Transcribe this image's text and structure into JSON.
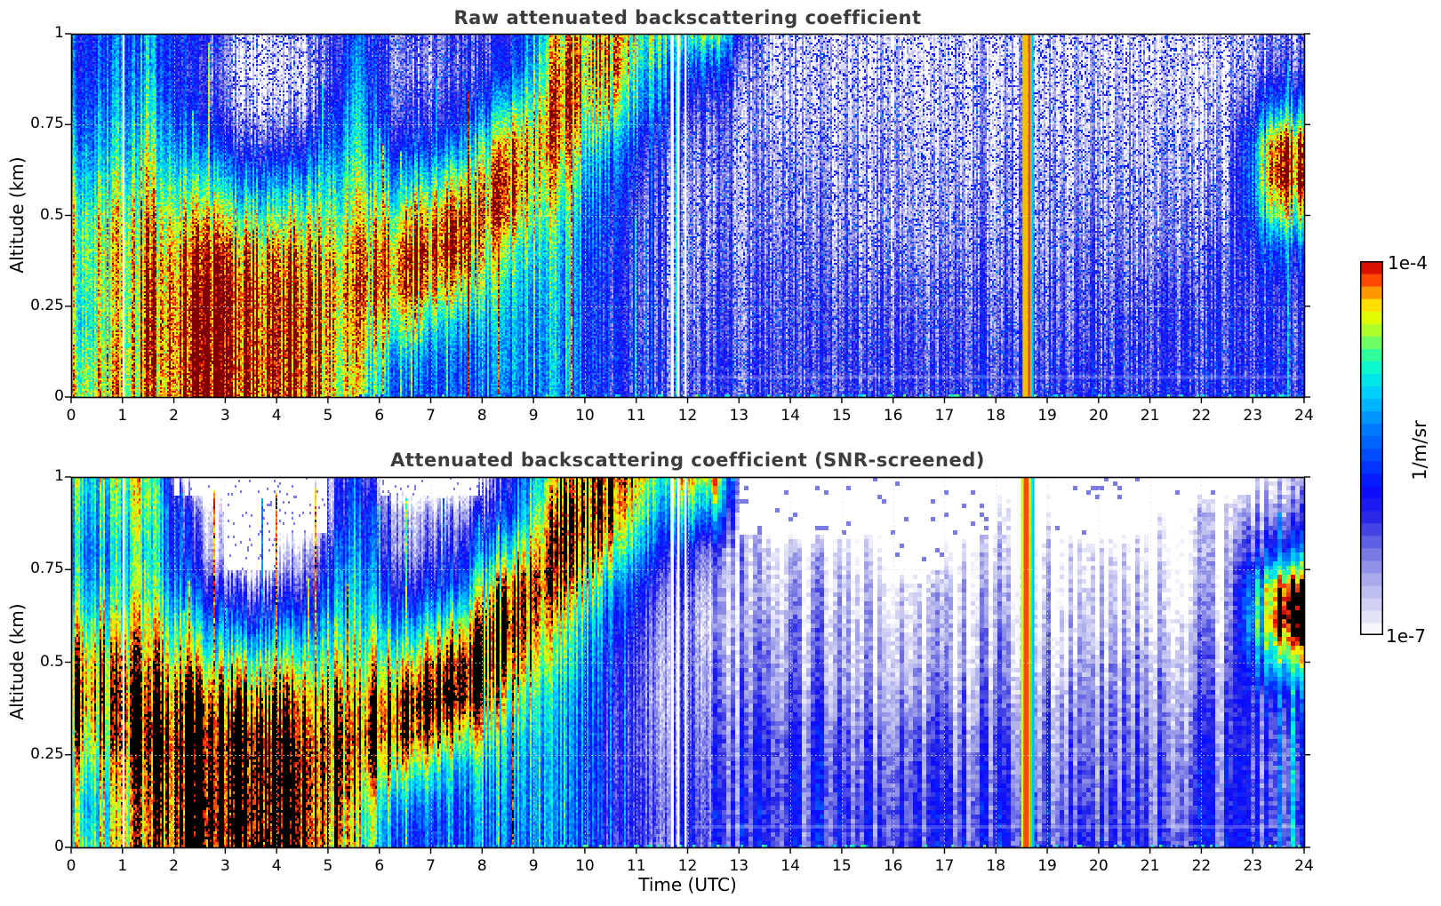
{
  "figure": {
    "background": "#ffffff",
    "xlabel": "Time (UTC)",
    "ylabel": "Altitude (km)",
    "panels": [
      {
        "title": "Raw attenuated backscattering coefficient"
      },
      {
        "title": "Attenuated backscattering coefficient (SNR-screened)"
      }
    ],
    "colorbar": {
      "max_label": "1e-4",
      "min_label": "1e-7",
      "unit_label": "1/m/sr"
    }
  },
  "chart_data": {
    "type": "heatmap",
    "x_axis": {
      "label": "Time (UTC)",
      "range": [
        0,
        24
      ],
      "tick_values": [
        0,
        1,
        2,
        3,
        4,
        5,
        6,
        7,
        8,
        9,
        10,
        11,
        12,
        13,
        14,
        15,
        16,
        17,
        18,
        19,
        20,
        21,
        22,
        23,
        24
      ],
      "tick_labels": [
        "0",
        "1",
        "2",
        "3",
        "4",
        "5",
        "6",
        "7",
        "8",
        "9",
        "10",
        "11",
        "12",
        "13",
        "14",
        "15",
        "16",
        "17",
        "18",
        "19",
        "20",
        "21",
        "22",
        "23",
        "24"
      ]
    },
    "y_axis": {
      "label": "Altitude (km)",
      "range": [
        0,
        1
      ],
      "tick_values": [
        1,
        0.75,
        0.5,
        0.25,
        0
      ],
      "tick_labels": [
        "1",
        "0.75",
        "0.5",
        "0.25",
        "0"
      ]
    },
    "colorbar": {
      "scale": "log10",
      "min": 1e-07,
      "max": 0.0001,
      "min_label": "1e-7",
      "max_label": "1e-4",
      "units": "1/m/sr",
      "n_segments": 30
    },
    "colormap_stops": [
      [
        -7.0,
        "#ffffff"
      ],
      [
        -6.78,
        "#d6d6f5"
      ],
      [
        -6.55,
        "#aaaaeb"
      ],
      [
        -6.3,
        "#6e6ee4"
      ],
      [
        -6.05,
        "#2828e6"
      ],
      [
        -5.82,
        "#0a0aff"
      ],
      [
        -5.58,
        "#0046ff"
      ],
      [
        -5.32,
        "#0082ff"
      ],
      [
        -5.08,
        "#00c8ff"
      ],
      [
        -4.88,
        "#00f5dc"
      ],
      [
        -4.72,
        "#3cff8c"
      ],
      [
        -4.58,
        "#a0ff3c"
      ],
      [
        -4.46,
        "#dcff00"
      ],
      [
        -4.36,
        "#ffe600"
      ],
      [
        -4.26,
        "#ffa000"
      ],
      [
        -4.16,
        "#ff5000"
      ],
      [
        -4.06,
        "#e61400"
      ],
      [
        -4.0,
        "#960000"
      ]
    ],
    "grid": {
      "col_time_centers_utc": [
        0.5,
        1.5,
        2.5,
        3.5,
        4.5,
        5.5,
        6.5,
        7.5,
        8.5,
        9.5,
        10.5,
        11.5,
        12.5,
        13.5,
        14.5,
        15.5,
        16.5,
        17.5,
        18.5,
        19.5,
        20.5,
        21.5,
        22.5,
        23.5
      ],
      "row_altitudes_km": [
        1.0,
        0.9,
        0.8,
        0.7,
        0.6,
        0.5,
        0.4,
        0.3,
        0.2,
        0.1,
        0.0
      ],
      "values": "log10 of attenuated backscatter (1/m/sr); null = screened out / no signal"
    },
    "data_gaps_utc": [
      {
        "t": 1.02,
        "w": 0.04
      },
      {
        "t": 11.7,
        "w": 0.06
      },
      {
        "t": 11.82,
        "w": 0.05
      },
      {
        "t": 11.96,
        "w": 0.04
      }
    ],
    "panels": [
      {
        "title": "Raw attenuated backscattering coefficient",
        "over_scale_color": "#7f0000",
        "stripe_bands_utc": [
          [
            18.52,
            18.63,
            -4.3
          ],
          [
            18.63,
            18.67,
            -4.15
          ],
          [
            18.67,
            18.7,
            -4.85
          ],
          [
            18.7,
            18.73,
            -5.1
          ]
        ],
        "z_log10": [
          [
            -5.6,
            -5.6,
            -5.4,
            -5.2,
            -4.9,
            -4.6,
            -4.5,
            -4.6,
            -4.7,
            -4.5,
            -4.4
          ],
          [
            -5.3,
            -5.2,
            -5.0,
            -4.8,
            -4.6,
            -4.4,
            -4.3,
            -4.2,
            -4.2,
            -4.2,
            -4.3
          ],
          [
            -6.0,
            -6.2,
            -6.0,
            -5.6,
            -5.0,
            -4.5,
            -4.15,
            -4.05,
            -4.0,
            -4.0,
            -4.0
          ],
          [
            -6.8,
            -7.0,
            -6.8,
            -6.2,
            -5.4,
            -4.7,
            -4.2,
            -4.0,
            -4.0,
            -4.0,
            -4.0
          ],
          [
            -6.6,
            -6.9,
            -6.6,
            -6.0,
            -5.2,
            -4.6,
            -4.2,
            -4.05,
            -4.0,
            -4.0,
            -4.0
          ],
          [
            -5.6,
            -5.4,
            -5.2,
            -5.0,
            -4.8,
            -4.6,
            -4.4,
            -4.3,
            -4.4,
            -4.5,
            -4.5
          ],
          [
            -6.4,
            -6.5,
            -6.3,
            -5.9,
            -5.2,
            -4.5,
            -4.1,
            -4.1,
            -4.6,
            -5.3,
            -5.6
          ],
          [
            -6.3,
            -6.4,
            -6.1,
            -5.5,
            -4.7,
            -4.15,
            -4.1,
            -4.5,
            -5.2,
            -5.6,
            -5.7
          ],
          [
            -6.0,
            -5.8,
            -5.0,
            -4.3,
            -4.1,
            -4.2,
            -4.7,
            -5.0,
            -5.2,
            -5.3,
            -5.4
          ],
          [
            -4.4,
            -4.2,
            -4.1,
            -4.2,
            -4.5,
            -4.8,
            -5.0,
            -5.1,
            -5.2,
            -5.2,
            -5.3
          ],
          [
            -4.3,
            -4.3,
            -4.6,
            -5.2,
            -5.6,
            -5.8,
            -5.9,
            -6.0,
            -6.0,
            -5.9,
            -6.0
          ],
          [
            -4.8,
            -5.2,
            -5.6,
            -6.0,
            -6.2,
            -6.3,
            -6.3,
            -6.3,
            -6.2,
            -6.1,
            -6.1
          ],
          [
            -4.6,
            -5.6,
            -6.2,
            -6.4,
            -6.5,
            -6.4,
            -6.4,
            -6.3,
            -6.2,
            -6.1,
            -6.1
          ],
          [
            -6.7,
            -6.7,
            -6.6,
            -6.5,
            -6.4,
            -6.4,
            -6.3,
            -6.2,
            -6.2,
            -6.1,
            -6.1
          ],
          [
            -6.8,
            -6.7,
            -6.7,
            -6.6,
            -6.5,
            -6.4,
            -6.3,
            -6.2,
            -6.1,
            -6.1,
            -6.1
          ],
          [
            -6.8,
            -6.8,
            -6.7,
            -6.6,
            -6.6,
            -6.6,
            -6.5,
            -6.3,
            -6.2,
            -6.1,
            -6.1
          ],
          [
            -6.9,
            -6.8,
            -6.8,
            -6.7,
            -6.6,
            -6.6,
            -6.5,
            -6.3,
            -6.2,
            -6.1,
            -6.1
          ],
          [
            -6.8,
            -6.8,
            -6.7,
            -6.7,
            -6.6,
            -6.5,
            -6.4,
            -6.3,
            -6.2,
            -6.1,
            -6.1
          ],
          [
            -6.8,
            -6.7,
            -6.7,
            -6.6,
            -6.5,
            -6.5,
            -6.4,
            -6.3,
            -6.2,
            -6.1,
            -6.0
          ],
          [
            -6.9,
            -6.8,
            -6.8,
            -6.7,
            -6.6,
            -6.5,
            -6.4,
            -6.3,
            -6.2,
            -6.1,
            -6.0
          ],
          [
            -6.9,
            -6.8,
            -6.7,
            -6.7,
            -6.6,
            -6.5,
            -6.4,
            -6.3,
            -6.2,
            -6.1,
            -6.0
          ],
          [
            -6.9,
            -6.9,
            -6.8,
            -6.7,
            -6.6,
            -6.5,
            -6.4,
            -6.2,
            -6.1,
            -6.1,
            -6.0
          ],
          [
            -6.9,
            -6.9,
            -6.8,
            -6.7,
            -6.6,
            -6.5,
            -6.3,
            -6.2,
            -6.1,
            -6.1,
            -6.0
          ],
          [
            -6.5,
            -6.2,
            -5.3,
            -4.1,
            -4.0,
            -4.6,
            -5.6,
            -6.0,
            -6.1,
            -6.0,
            -6.0
          ]
        ]
      },
      {
        "title": "Attenuated backscattering coefficient (SNR-screened)",
        "over_scale_color": "#000000",
        "stripe_bands_utc": [
          [
            18.49,
            18.54,
            -4.5
          ],
          [
            18.54,
            18.64,
            -4.15
          ],
          [
            18.64,
            18.68,
            -4.4
          ],
          [
            18.68,
            18.71,
            -4.85
          ],
          [
            18.71,
            18.75,
            -5.1
          ]
        ],
        "z_log10": [
          [
            -4.8,
            -5.0,
            -5.2,
            -5.0,
            -4.6,
            -4.2,
            -4.1,
            -4.3,
            -4.6,
            -4.9,
            -4.6
          ],
          [
            -4.5,
            -4.6,
            -4.8,
            -4.7,
            -4.4,
            -4.2,
            -4.0,
            -3.9,
            -4.0,
            -4.1,
            -4.2
          ],
          [
            null,
            -6.5,
            -6.3,
            -5.8,
            -5.1,
            -4.5,
            -4.0,
            -3.8,
            -3.8,
            -3.8,
            -3.8
          ],
          [
            null,
            null,
            null,
            -6.4,
            -5.6,
            -4.7,
            -4.1,
            -3.8,
            -3.8,
            -3.8,
            -3.8
          ],
          [
            null,
            null,
            -6.6,
            -6.1,
            -5.3,
            -4.6,
            -4.1,
            -3.9,
            -3.8,
            -3.8,
            -3.8
          ],
          [
            -5.6,
            -5.4,
            -5.2,
            -5.0,
            -4.8,
            -4.6,
            -4.3,
            -4.1,
            -4.2,
            -4.4,
            -4.4
          ],
          [
            null,
            -6.6,
            -6.4,
            -5.9,
            -5.2,
            -4.4,
            -3.9,
            -3.9,
            -4.5,
            -5.3,
            -5.6
          ],
          [
            null,
            -6.5,
            -6.1,
            -5.5,
            -4.6,
            -3.9,
            -3.8,
            -4.4,
            -5.2,
            -5.6,
            -5.7
          ],
          [
            -6.0,
            -5.7,
            -4.9,
            -4.1,
            -3.9,
            -4.1,
            -4.6,
            -5.0,
            -5.2,
            -5.3,
            -5.4
          ],
          [
            -4.2,
            -3.9,
            -3.8,
            -4.0,
            -4.4,
            -4.7,
            -5.0,
            -5.1,
            -5.2,
            -5.2,
            -5.3
          ],
          [
            -4.0,
            -4.1,
            -4.5,
            -5.2,
            -5.6,
            -5.8,
            -5.9,
            -6.0,
            -6.0,
            -5.9,
            -6.0
          ],
          [
            -4.6,
            -5.1,
            -5.6,
            -6.1,
            -6.3,
            -6.4,
            -6.4,
            -6.3,
            -6.2,
            -6.1,
            -6.1
          ],
          [
            -4.3,
            -5.2,
            -6.3,
            -6.6,
            -6.7,
            -6.5,
            -6.4,
            -6.3,
            -6.2,
            -6.1,
            -6.1
          ],
          [
            null,
            null,
            -6.9,
            -6.8,
            -6.6,
            -6.5,
            -6.4,
            -6.2,
            -6.2,
            -6.1,
            -6.1
          ],
          [
            null,
            null,
            -6.9,
            -6.7,
            -6.6,
            -6.5,
            -6.4,
            -6.2,
            -6.1,
            -6.1,
            -6.1
          ],
          [
            null,
            null,
            -6.9,
            -6.8,
            -6.7,
            -6.6,
            -6.5,
            -6.3,
            -6.2,
            -6.1,
            -6.1
          ],
          [
            null,
            null,
            null,
            -6.9,
            -6.8,
            -6.7,
            -6.5,
            -6.3,
            -6.2,
            -6.1,
            -6.1
          ],
          [
            null,
            null,
            -6.9,
            -6.8,
            -6.7,
            -6.6,
            -6.5,
            -6.3,
            -6.2,
            -6.1,
            -6.1
          ],
          [
            null,
            -6.9,
            -6.9,
            -6.8,
            -6.7,
            -6.6,
            -6.4,
            -6.3,
            -6.2,
            -6.1,
            -6.0
          ],
          [
            null,
            null,
            -6.9,
            -6.8,
            -6.7,
            -6.6,
            -6.4,
            -6.3,
            -6.2,
            -6.1,
            -6.0
          ],
          [
            null,
            null,
            -6.9,
            -6.8,
            -6.7,
            -6.5,
            -6.4,
            -6.3,
            -6.2,
            -6.1,
            -6.0
          ],
          [
            null,
            -6.9,
            -6.9,
            -6.8,
            -6.6,
            -6.5,
            -6.4,
            -6.2,
            -6.1,
            -6.1,
            -6.0
          ],
          [
            null,
            -6.9,
            -6.8,
            -6.7,
            -6.6,
            -6.5,
            -6.3,
            -6.2,
            -6.1,
            -6.1,
            -6.0
          ],
          [
            -6.7,
            -6.3,
            -5.4,
            -3.9,
            -3.8,
            -4.7,
            -5.7,
            -6.0,
            -6.1,
            -6.0,
            -6.0
          ]
        ]
      }
    ]
  }
}
